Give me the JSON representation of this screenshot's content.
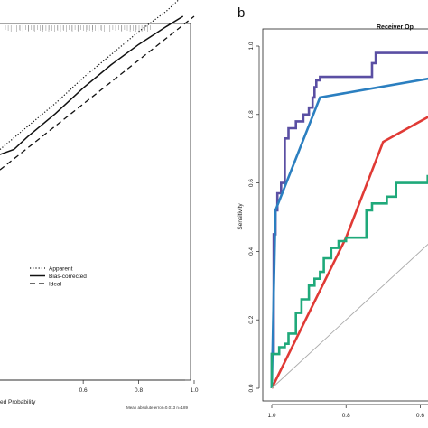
{
  "panel_b_label": "b",
  "chart_data": [
    {
      "type": "line",
      "xlabel": "ed Probability",
      "x_ticks": [
        "0.6",
        "0.8",
        "1.0"
      ],
      "xlim": [
        0.3,
        1.0
      ],
      "ylim": [
        0.3,
        1.0
      ],
      "footnote": "Mean absolute error=0.013 n=189",
      "legend": [
        "Apparent",
        "Bias-corrected",
        "Ideal"
      ],
      "legend_position": "lower-right",
      "series": [
        {
          "name": "Apparent",
          "style": "dotted",
          "points": [
            [
              0.3,
              0.74
            ],
            [
              0.4,
              0.785
            ],
            [
              0.5,
              0.83
            ],
            [
              0.6,
              0.88
            ],
            [
              0.7,
              0.925
            ],
            [
              0.8,
              0.97
            ],
            [
              0.9,
              1.01
            ],
            [
              0.96,
              1.04
            ]
          ]
        },
        {
          "name": "Bias-corrected",
          "style": "solid",
          "points": [
            [
              0.3,
              0.73
            ],
            [
              0.35,
              0.74
            ],
            [
              0.4,
              0.765
            ],
            [
              0.5,
              0.81
            ],
            [
              0.6,
              0.86
            ],
            [
              0.7,
              0.905
            ],
            [
              0.8,
              0.945
            ],
            [
              0.9,
              0.98
            ],
            [
              0.96,
              1.0
            ]
          ]
        },
        {
          "name": "Ideal",
          "style": "dashed",
          "points": [
            [
              0.3,
              0.7
            ],
            [
              1.0,
              1.0
            ]
          ]
        }
      ]
    },
    {
      "type": "line",
      "title": "Receiver Op",
      "ylabel": "Sensitivity",
      "x_ticks": [
        "1.0",
        "0.8",
        "0.6"
      ],
      "y_ticks": [
        "0.0",
        "0.2",
        "0.4",
        "0.6",
        "0.8",
        "1.0"
      ],
      "xlim": [
        1.0,
        0.55
      ],
      "ylim": [
        0.0,
        1.0
      ],
      "series": [
        {
          "color": "#5a4fa3",
          "points": [
            [
              1.0,
              0.0
            ],
            [
              1.0,
              0.1
            ],
            [
              0.995,
              0.1
            ],
            [
              0.995,
              0.45
            ],
            [
              0.99,
              0.45
            ],
            [
              0.99,
              0.52
            ],
            [
              0.985,
              0.52
            ],
            [
              0.985,
              0.57
            ],
            [
              0.975,
              0.57
            ],
            [
              0.975,
              0.6
            ],
            [
              0.965,
              0.6
            ],
            [
              0.965,
              0.73
            ],
            [
              0.955,
              0.73
            ],
            [
              0.955,
              0.76
            ],
            [
              0.935,
              0.76
            ],
            [
              0.935,
              0.78
            ],
            [
              0.915,
              0.78
            ],
            [
              0.915,
              0.8
            ],
            [
              0.9,
              0.8
            ],
            [
              0.9,
              0.82
            ],
            [
              0.89,
              0.82
            ],
            [
              0.89,
              0.85
            ],
            [
              0.885,
              0.85
            ],
            [
              0.885,
              0.88
            ],
            [
              0.88,
              0.88
            ],
            [
              0.88,
              0.9
            ],
            [
              0.87,
              0.9
            ],
            [
              0.87,
              0.91
            ],
            [
              0.73,
              0.91
            ],
            [
              0.73,
              0.95
            ],
            [
              0.72,
              0.95
            ],
            [
              0.72,
              0.98
            ],
            [
              0.55,
              0.98
            ]
          ]
        },
        {
          "color": "#2b7fc0",
          "points": [
            [
              1.0,
              0.0
            ],
            [
              0.99,
              0.52
            ],
            [
              0.87,
              0.85
            ],
            [
              0.55,
              0.91
            ]
          ]
        },
        {
          "color": "#e03a35",
          "points": [
            [
              1.0,
              0.0
            ],
            [
              0.8,
              0.44
            ],
            [
              0.7,
              0.72
            ],
            [
              0.55,
              0.81
            ]
          ]
        },
        {
          "color": "#1fa97a",
          "points": [
            [
              1.0,
              0.0
            ],
            [
              1.0,
              0.1
            ],
            [
              0.98,
              0.1
            ],
            [
              0.98,
              0.12
            ],
            [
              0.965,
              0.12
            ],
            [
              0.965,
              0.13
            ],
            [
              0.955,
              0.13
            ],
            [
              0.955,
              0.16
            ],
            [
              0.935,
              0.16
            ],
            [
              0.935,
              0.22
            ],
            [
              0.92,
              0.22
            ],
            [
              0.92,
              0.26
            ],
            [
              0.9,
              0.26
            ],
            [
              0.9,
              0.3
            ],
            [
              0.885,
              0.3
            ],
            [
              0.885,
              0.32
            ],
            [
              0.87,
              0.32
            ],
            [
              0.87,
              0.34
            ],
            [
              0.86,
              0.34
            ],
            [
              0.86,
              0.38
            ],
            [
              0.84,
              0.38
            ],
            [
              0.84,
              0.41
            ],
            [
              0.82,
              0.41
            ],
            [
              0.82,
              0.43
            ],
            [
              0.8,
              0.43
            ],
            [
              0.8,
              0.44
            ],
            [
              0.745,
              0.44
            ],
            [
              0.745,
              0.52
            ],
            [
              0.73,
              0.52
            ],
            [
              0.73,
              0.54
            ],
            [
              0.69,
              0.54
            ],
            [
              0.69,
              0.56
            ],
            [
              0.665,
              0.56
            ],
            [
              0.665,
              0.6
            ],
            [
              0.58,
              0.6
            ],
            [
              0.58,
              0.62
            ],
            [
              0.55,
              0.62
            ]
          ]
        },
        {
          "color": "#aaaaaa",
          "points": [
            [
              1.0,
              0.0
            ],
            [
              0.55,
              0.45
            ]
          ]
        }
      ]
    }
  ]
}
